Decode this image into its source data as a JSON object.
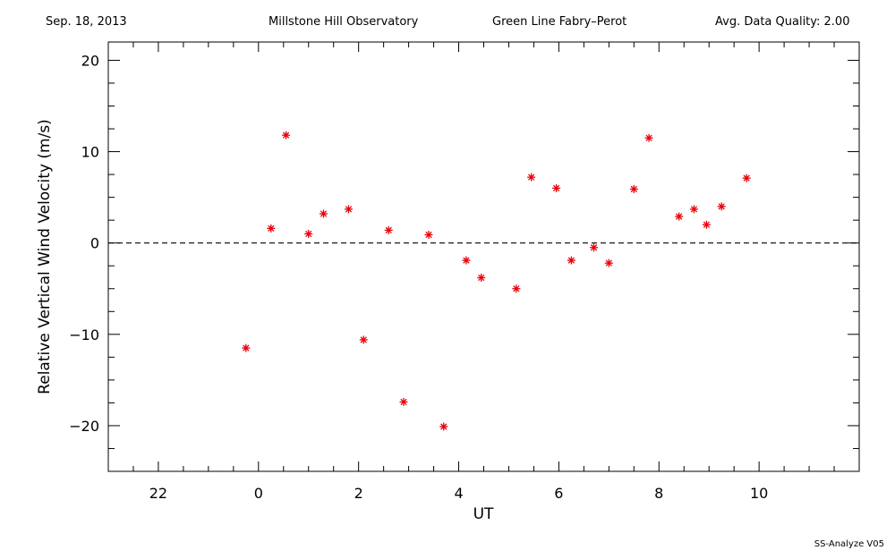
{
  "header": {
    "date": "Sep. 18, 2013",
    "observatory": "Millstone Hill Observatory",
    "instrument": "Green Line Fabry–Perot",
    "quality": "Avg. Data Quality: 2.00"
  },
  "footer": "SS-Analyze V05",
  "colors": {
    "points": "#e8000a",
    "axes": "#000000"
  },
  "chart_data": {
    "type": "scatter",
    "title": "",
    "xlabel": "UT",
    "ylabel": "Relative Vertical Wind Velocity (m/s)",
    "xlim": [
      -3,
      12
    ],
    "ylim": [
      -25,
      22
    ],
    "x_major_ticks": [
      -2,
      0,
      2,
      4,
      6,
      8,
      10
    ],
    "x_tick_labels": [
      "22",
      "0",
      "2",
      "4",
      "6",
      "8",
      "10"
    ],
    "y_major_ticks": [
      -20,
      -10,
      0,
      10,
      20
    ],
    "y_tick_labels": [
      "−20",
      "−10",
      "0",
      "10",
      "20"
    ],
    "zero_line": "dashed",
    "marker": "asterisk",
    "series": [
      {
        "points": [
          [
            -0.25,
            -11.5
          ],
          [
            0.25,
            1.6
          ],
          [
            0.55,
            11.8
          ],
          [
            1.0,
            1.0
          ],
          [
            1.3,
            3.2
          ],
          [
            1.8,
            3.7
          ],
          [
            2.1,
            -10.6
          ],
          [
            2.6,
            1.4
          ],
          [
            2.9,
            -17.4
          ],
          [
            3.4,
            0.9
          ],
          [
            3.7,
            -20.1
          ],
          [
            4.15,
            -1.9
          ],
          [
            4.45,
            -3.8
          ],
          [
            5.15,
            -5.0
          ],
          [
            5.45,
            7.2
          ],
          [
            5.95,
            6.0
          ],
          [
            6.25,
            -1.9
          ],
          [
            6.7,
            -0.5
          ],
          [
            7.0,
            -2.2
          ],
          [
            7.5,
            5.9
          ],
          [
            7.8,
            11.5
          ],
          [
            8.4,
            2.9
          ],
          [
            8.7,
            3.7
          ],
          [
            8.95,
            2.0
          ],
          [
            9.25,
            4.0
          ],
          [
            9.75,
            7.1
          ]
        ]
      }
    ]
  }
}
